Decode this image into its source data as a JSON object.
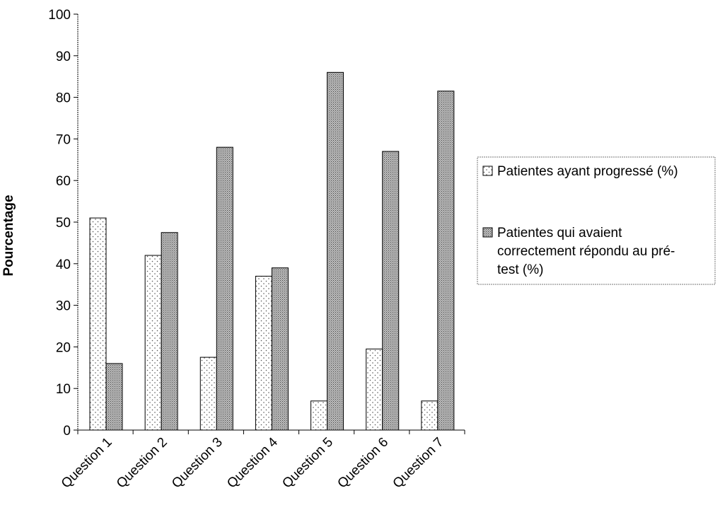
{
  "chart_data": {
    "type": "bar",
    "title": "",
    "xlabel": "",
    "ylabel": "Pourcentage",
    "ylim": [
      0,
      100
    ],
    "yticks": [
      0,
      10,
      20,
      30,
      40,
      50,
      60,
      70,
      80,
      90,
      100
    ],
    "grid": false,
    "legend_position": "right",
    "categories": [
      "Question 1",
      "Question 2",
      "Question 3",
      "Question 4",
      "Question 5",
      "Question 6",
      "Question 7"
    ],
    "series": [
      {
        "name": "Patientes ayant progressé (%)",
        "legend_lines": [
          "Patientes ayant progressé (%)"
        ],
        "pattern": "dotted-white",
        "values": [
          51,
          42,
          17.5,
          37,
          7,
          19.5,
          7
        ]
      },
      {
        "name": "Patientes qui avaient correctement répondu au pré-test (%)",
        "legend_lines": [
          "Patientes qui avaient",
          "correctement répondu au pré-",
          "test (%)"
        ],
        "pattern": "dense-gray",
        "values": [
          16,
          47.5,
          68,
          39,
          86,
          67,
          81.5
        ]
      }
    ]
  }
}
